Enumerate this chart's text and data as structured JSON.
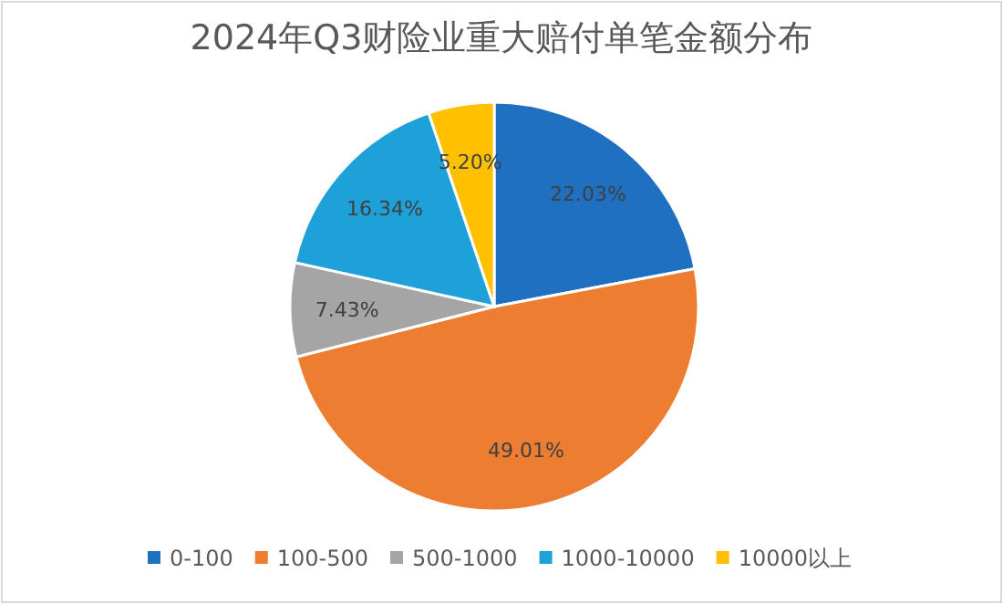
{
  "chart_data": {
    "type": "pie",
    "title": "2024年Q3财险业重大赔付单笔金额分布",
    "categories": [
      "0-100",
      "100-500",
      "500-1000",
      "1000-10000",
      "10000以上"
    ],
    "values": [
      22.03,
      49.01,
      7.43,
      16.34,
      5.2
    ],
    "value_labels": [
      "22.03%",
      "49.01%",
      "7.43%",
      "16.34%",
      "5.20%"
    ],
    "colors": [
      "#1f70c1",
      "#ed7d31",
      "#a5a5a5",
      "#1ea0d8",
      "#ffc000"
    ],
    "legend": "bottom"
  }
}
